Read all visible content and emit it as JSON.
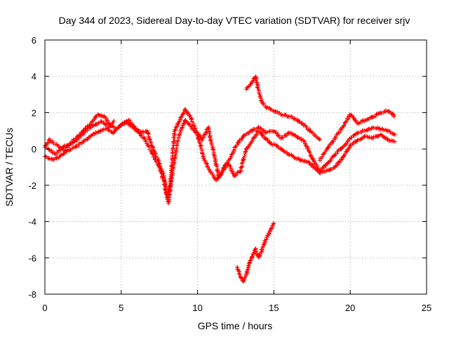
{
  "chart_data": {
    "type": "scatter",
    "title": "Day 344 of 2023, Sidereal Day-to-day VTEC variation (SDTVAR) for receiver srjv",
    "xlabel": "GPS time / hours",
    "ylabel": "SDTVAR / TECUs",
    "xlim": [
      0,
      25
    ],
    "ylim": [
      -8,
      6
    ],
    "xticks": [
      "0",
      "5",
      "10",
      "15",
      "20",
      "25"
    ],
    "yticks": [
      "-8",
      "-6",
      "-4",
      "-2",
      "0",
      "2",
      "4",
      "6"
    ],
    "grid": true,
    "marker": "+",
    "series": [
      {
        "name": "trace-a",
        "color": "#ff0000",
        "x": [
          0.0,
          0.3,
          0.8,
          1.3,
          1.8,
          2.4,
          3.0,
          3.5,
          3.9,
          4.3,
          4.7,
          5.2,
          5.8,
          6.3,
          6.7,
          7.0,
          7.4,
          7.8,
          8.0,
          8.2,
          8.5,
          8.9,
          9.2,
          9.5,
          9.9,
          10.3,
          10.7,
          11.0,
          11.4,
          11.8,
          12.2,
          12.6,
          13.0,
          13.5,
          14.0,
          14.5,
          15.0,
          15.5,
          16.0,
          16.5,
          17.0,
          17.5,
          18.0,
          18.5,
          19.0,
          19.5,
          20.0,
          20.5,
          21.0,
          21.5,
          22.0,
          22.5,
          22.9
        ],
        "y": [
          0.1,
          0.5,
          0.2,
          -0.1,
          0.4,
          0.9,
          1.4,
          1.9,
          1.8,
          1.3,
          1.1,
          1.5,
          1.2,
          0.9,
          1.0,
          0.2,
          -0.6,
          -1.5,
          -2.6,
          -2.0,
          1.0,
          1.7,
          2.2,
          1.8,
          1.0,
          0.5,
          1.2,
          0.0,
          -1.6,
          -0.9,
          -0.4,
          0.3,
          0.7,
          1.0,
          1.2,
          0.9,
          1.0,
          0.6,
          0.9,
          0.7,
          0.4,
          -0.5,
          -1.2,
          -0.8,
          -0.3,
          0.1,
          0.6,
          0.9,
          1.0,
          1.2,
          1.1,
          1.0,
          0.8
        ]
      },
      {
        "name": "trace-b",
        "color": "#ff0000",
        "x": [
          0.0,
          0.5,
          1.0,
          1.5,
          2.0,
          2.5,
          3.0,
          3.6,
          4.0,
          4.5,
          5.0,
          5.5,
          6.0,
          6.5,
          7.0,
          7.5,
          7.8,
          8.1,
          8.4,
          8.8,
          9.2,
          9.6,
          10.0,
          10.4,
          10.8,
          11.2,
          11.6,
          12.0,
          12.4,
          12.8,
          13.2,
          13.6,
          14.0,
          14.4,
          14.8,
          15.2,
          15.6,
          16.0,
          16.4,
          16.8,
          17.2,
          17.6,
          18.0,
          18.5,
          19.0,
          19.5,
          20.0,
          20.5,
          21.0,
          21.5,
          22.0,
          22.5,
          22.9
        ],
        "y": [
          -0.4,
          -0.6,
          -0.4,
          -0.1,
          0.1,
          0.4,
          0.7,
          1.0,
          1.1,
          0.9,
          1.3,
          1.6,
          1.0,
          0.6,
          -0.2,
          -1.0,
          -1.8,
          -3.0,
          -1.0,
          0.8,
          1.6,
          1.2,
          0.8,
          -0.5,
          -1.2,
          -1.7,
          -1.3,
          -0.8,
          -1.5,
          -1.2,
          0.0,
          0.5,
          1.0,
          0.6,
          0.3,
          0.2,
          -0.1,
          -0.3,
          -0.5,
          -0.6,
          -0.7,
          -1.0,
          -1.3,
          -1.2,
          -1.0,
          -0.5,
          0.2,
          0.5,
          0.7,
          0.6,
          0.8,
          0.5,
          0.4
        ]
      },
      {
        "name": "trace-c",
        "color": "#ff0000",
        "x": [
          0.2,
          0.7,
          1.2,
          1.7,
          2.2,
          2.7,
          3.2,
          3.7,
          4.2,
          4.5
        ],
        "y": [
          0.0,
          -0.3,
          0.1,
          0.3,
          0.6,
          1.0,
          1.3,
          1.5,
          1.2,
          1.5
        ]
      },
      {
        "name": "trace-d-late",
        "color": "#ff0000",
        "x": [
          18.0,
          18.5,
          19.0,
          19.5,
          20.0,
          20.5,
          21.0,
          21.5,
          22.0,
          22.5,
          22.9
        ],
        "y": [
          -0.6,
          0.0,
          0.6,
          1.2,
          1.9,
          1.4,
          1.6,
          1.8,
          2.0,
          2.1,
          1.8
        ]
      },
      {
        "name": "trace-e-high",
        "color": "#ff0000",
        "x": [
          13.2,
          13.5,
          13.8,
          14.0,
          14.2,
          14.5,
          15.0,
          15.5,
          16.0,
          16.5,
          17.0,
          17.5,
          18.0
        ],
        "y": [
          3.3,
          3.6,
          4.0,
          3.2,
          2.6,
          2.3,
          2.1,
          1.9,
          1.8,
          1.6,
          1.3,
          0.9,
          0.5
        ]
      },
      {
        "name": "trace-f-low",
        "color": "#ff0000",
        "x": [
          12.6,
          12.8,
          13.0,
          13.2,
          13.4,
          13.6,
          13.8,
          14.0,
          14.2,
          14.4,
          14.6,
          14.8,
          15.0
        ],
        "y": [
          -6.5,
          -7.0,
          -7.3,
          -6.9,
          -6.3,
          -5.9,
          -5.5,
          -6.0,
          -5.6,
          -5.1,
          -4.8,
          -4.4,
          -4.1
        ]
      }
    ]
  }
}
